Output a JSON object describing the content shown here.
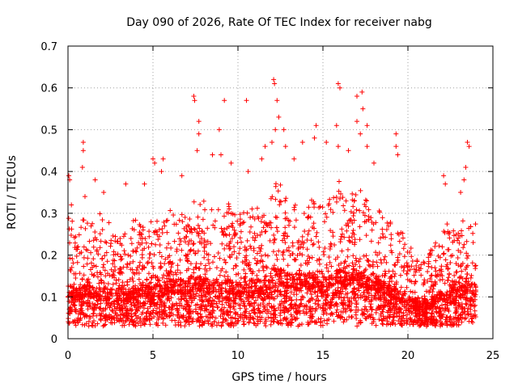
{
  "chart_data": {
    "type": "scatter",
    "title": "Day 090 of 2026, Rate Of TEC Index for receiver nabg",
    "xlabel": "GPS time / hours",
    "ylabel": "ROTI / TECUs",
    "xlim": [
      0,
      25
    ],
    "ylim": [
      0,
      0.7
    ],
    "x_ticks": [
      "0",
      "5",
      "10",
      "15",
      "20",
      "25"
    ],
    "y_ticks": [
      "0",
      "0.1",
      "0.2",
      "0.3",
      "0.4",
      "0.5",
      "0.6",
      "0.7"
    ],
    "grid": true,
    "marker": "+",
    "color": "#ff0000",
    "data_extent_hours": [
      0,
      24
    ],
    "envelope": {
      "x": [
        0,
        0.5,
        1,
        1.5,
        2,
        2.5,
        3,
        3.5,
        4,
        4.5,
        5,
        5.5,
        6,
        6.5,
        7,
        7.5,
        8,
        8.5,
        9,
        9.5,
        10,
        10.5,
        11,
        11.5,
        12,
        12.5,
        13,
        13.5,
        14,
        14.5,
        15,
        15.5,
        16,
        16.5,
        17,
        17.5,
        18,
        18.5,
        19,
        19.5,
        20,
        20.5,
        21,
        21.5,
        22,
        22.5,
        23,
        23.5,
        24
      ],
      "typical_max": [
        0.33,
        0.25,
        0.32,
        0.3,
        0.3,
        0.28,
        0.25,
        0.27,
        0.29,
        0.28,
        0.3,
        0.27,
        0.31,
        0.3,
        0.3,
        0.35,
        0.33,
        0.32,
        0.31,
        0.33,
        0.3,
        0.31,
        0.32,
        0.3,
        0.38,
        0.37,
        0.33,
        0.32,
        0.34,
        0.35,
        0.33,
        0.34,
        0.38,
        0.37,
        0.36,
        0.35,
        0.33,
        0.3,
        0.28,
        0.27,
        0.24,
        0.2,
        0.2,
        0.22,
        0.28,
        0.28,
        0.27,
        0.3,
        0.28
      ],
      "median": [
        0.1,
        0.09,
        0.1,
        0.1,
        0.1,
        0.09,
        0.09,
        0.09,
        0.1,
        0.1,
        0.1,
        0.1,
        0.11,
        0.11,
        0.11,
        0.12,
        0.11,
        0.11,
        0.11,
        0.11,
        0.1,
        0.11,
        0.11,
        0.11,
        0.13,
        0.13,
        0.12,
        0.12,
        0.12,
        0.12,
        0.11,
        0.12,
        0.13,
        0.13,
        0.13,
        0.12,
        0.12,
        0.11,
        0.1,
        0.09,
        0.08,
        0.07,
        0.07,
        0.08,
        0.09,
        0.1,
        0.1,
        0.11,
        0.1
      ],
      "min": [
        0.03,
        0.03,
        0.03,
        0.03,
        0.03,
        0.03,
        0.03,
        0.03,
        0.03,
        0.03,
        0.03,
        0.03,
        0.03,
        0.03,
        0.03,
        0.03,
        0.03,
        0.03,
        0.03,
        0.03,
        0.03,
        0.03,
        0.03,
        0.03,
        0.03,
        0.03,
        0.03,
        0.03,
        0.03,
        0.03,
        0.03,
        0.03,
        0.04,
        0.04,
        0.03,
        0.03,
        0.03,
        0.03,
        0.03,
        0.03,
        0.03,
        0.03,
        0.03,
        0.03,
        0.03,
        0.03,
        0.03,
        0.03,
        0.03
      ]
    },
    "outliers": [
      {
        "x": 0.05,
        "y": 0.39
      },
      {
        "x": 0.1,
        "y": 0.38
      },
      {
        "x": 0.2,
        "y": 0.32
      },
      {
        "x": 0.9,
        "y": 0.47
      },
      {
        "x": 0.9,
        "y": 0.45
      },
      {
        "x": 0.85,
        "y": 0.41
      },
      {
        "x": 1.0,
        "y": 0.34
      },
      {
        "x": 1.6,
        "y": 0.38
      },
      {
        "x": 2.1,
        "y": 0.35
      },
      {
        "x": 3.4,
        "y": 0.37
      },
      {
        "x": 4.5,
        "y": 0.37
      },
      {
        "x": 5.0,
        "y": 0.43
      },
      {
        "x": 5.1,
        "y": 0.42
      },
      {
        "x": 5.6,
        "y": 0.43
      },
      {
        "x": 5.5,
        "y": 0.4
      },
      {
        "x": 6.7,
        "y": 0.39
      },
      {
        "x": 7.4,
        "y": 0.58
      },
      {
        "x": 7.45,
        "y": 0.57
      },
      {
        "x": 7.7,
        "y": 0.52
      },
      {
        "x": 7.7,
        "y": 0.49
      },
      {
        "x": 7.6,
        "y": 0.45
      },
      {
        "x": 8.5,
        "y": 0.44
      },
      {
        "x": 8.9,
        "y": 0.5
      },
      {
        "x": 9.2,
        "y": 0.57
      },
      {
        "x": 9.0,
        "y": 0.44
      },
      {
        "x": 9.6,
        "y": 0.42
      },
      {
        "x": 10.5,
        "y": 0.57
      },
      {
        "x": 10.6,
        "y": 0.4
      },
      {
        "x": 11.4,
        "y": 0.43
      },
      {
        "x": 11.6,
        "y": 0.46
      },
      {
        "x": 12.1,
        "y": 0.62
      },
      {
        "x": 12.15,
        "y": 0.61
      },
      {
        "x": 12.3,
        "y": 0.57
      },
      {
        "x": 12.4,
        "y": 0.53
      },
      {
        "x": 12.2,
        "y": 0.5
      },
      {
        "x": 12.0,
        "y": 0.47
      },
      {
        "x": 12.7,
        "y": 0.5
      },
      {
        "x": 12.8,
        "y": 0.46
      },
      {
        "x": 13.3,
        "y": 0.43
      },
      {
        "x": 13.8,
        "y": 0.47
      },
      {
        "x": 14.6,
        "y": 0.51
      },
      {
        "x": 14.5,
        "y": 0.48
      },
      {
        "x": 15.2,
        "y": 0.47
      },
      {
        "x": 15.9,
        "y": 0.61
      },
      {
        "x": 16.0,
        "y": 0.6
      },
      {
        "x": 15.8,
        "y": 0.51
      },
      {
        "x": 15.9,
        "y": 0.46
      },
      {
        "x": 16.5,
        "y": 0.45
      },
      {
        "x": 17.0,
        "y": 0.58
      },
      {
        "x": 17.3,
        "y": 0.59
      },
      {
        "x": 17.35,
        "y": 0.55
      },
      {
        "x": 17.0,
        "y": 0.52
      },
      {
        "x": 17.2,
        "y": 0.49
      },
      {
        "x": 17.6,
        "y": 0.51
      },
      {
        "x": 17.6,
        "y": 0.46
      },
      {
        "x": 18.0,
        "y": 0.42
      },
      {
        "x": 19.3,
        "y": 0.49
      },
      {
        "x": 19.3,
        "y": 0.46
      },
      {
        "x": 19.4,
        "y": 0.44
      },
      {
        "x": 22.1,
        "y": 0.39
      },
      {
        "x": 22.2,
        "y": 0.37
      },
      {
        "x": 23.1,
        "y": 0.35
      },
      {
        "x": 23.3,
        "y": 0.38
      },
      {
        "x": 23.5,
        "y": 0.47
      },
      {
        "x": 23.6,
        "y": 0.46
      },
      {
        "x": 23.4,
        "y": 0.41
      }
    ]
  }
}
